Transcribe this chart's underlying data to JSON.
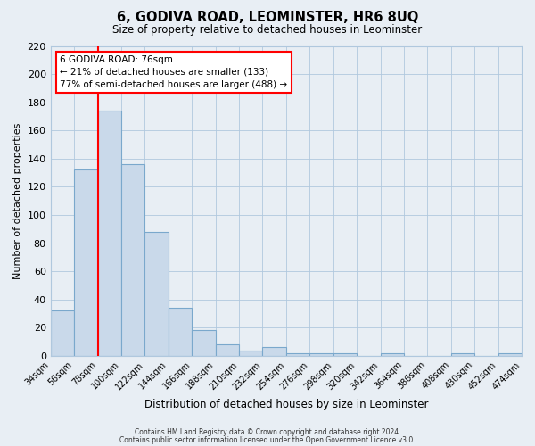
{
  "title": "6, GODIVA ROAD, LEOMINSTER, HR6 8UQ",
  "subtitle": "Size of property relative to detached houses in Leominster",
  "xlabel": "Distribution of detached houses by size in Leominster",
  "ylabel": "Number of detached properties",
  "bin_labels": [
    "34sqm",
    "56sqm",
    "78sqm",
    "100sqm",
    "122sqm",
    "144sqm",
    "166sqm",
    "188sqm",
    "210sqm",
    "232sqm",
    "254sqm",
    "276sqm",
    "298sqm",
    "320sqm",
    "342sqm",
    "364sqm",
    "386sqm",
    "408sqm",
    "430sqm",
    "452sqm",
    "474sqm"
  ],
  "bar_heights": [
    32,
    132,
    174,
    136,
    88,
    34,
    18,
    8,
    4,
    6,
    2,
    2,
    2,
    0,
    2,
    0,
    0,
    2,
    0,
    2
  ],
  "bar_color": "#c9d9ea",
  "bar_edge_color": "#7aa8cc",
  "red_line_bin": 2,
  "ylim": [
    0,
    220
  ],
  "yticks": [
    0,
    20,
    40,
    60,
    80,
    100,
    120,
    140,
    160,
    180,
    200,
    220
  ],
  "annotation_title": "6 GODIVA ROAD: 76sqm",
  "annotation_line1": "← 21% of detached houses are smaller (133)",
  "annotation_line2": "77% of semi-detached houses are larger (488) →",
  "footer1": "Contains HM Land Registry data © Crown copyright and database right 2024.",
  "footer2": "Contains public sector information licensed under the Open Government Licence v3.0.",
  "fig_bg": "#e8eef4",
  "plot_bg": "#e8eef4"
}
